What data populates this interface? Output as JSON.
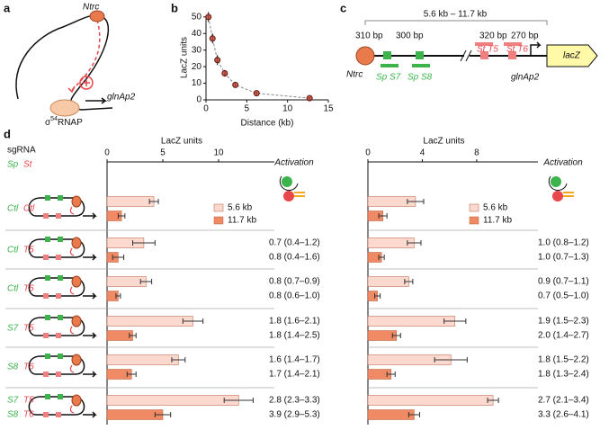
{
  "panel_labels": [
    "a",
    "b",
    "c",
    "d"
  ],
  "diagram_a": {
    "ntrc": "Ntrc",
    "promoter": "glnAp2",
    "sigma": "σ",
    "sigma_sup": "54",
    "rnap": "RNAP"
  },
  "diagram_c": {
    "span": "5.6 kb – 11.7 kb",
    "spacings": [
      "310 bp",
      "300 bp",
      "320 bp",
      "270 bp"
    ],
    "st_sites": [
      "St T5",
      "St T6"
    ],
    "ntrc": "Ntrc",
    "sp_sites": [
      "Sp S7",
      "Sp S8"
    ],
    "promoter": "glnAp2",
    "gene": "lacZ"
  },
  "panel_d": {
    "sgrna": "sgRNA",
    "sp": "Sp",
    "st": "St",
    "rows": [
      {
        "sp": [
          "Ctl"
        ],
        "st": [
          "Ctl"
        ]
      },
      {
        "sp": [
          "Ctl"
        ],
        "st": [
          "T5"
        ]
      },
      {
        "sp": [
          "Ctl"
        ],
        "st": [
          "T6"
        ]
      },
      {
        "sp": [
          "S7"
        ],
        "st": [
          "T5"
        ]
      },
      {
        "sp": [
          "S8"
        ],
        "st": [
          "T6"
        ]
      },
      {
        "sp": [
          "S7",
          "S8"
        ],
        "st": [
          "T5",
          "T6"
        ]
      }
    ]
  },
  "chart_data": [
    {
      "type": "scatter",
      "xlabel": "Distance (kb)",
      "ylabel": "LacZ units",
      "x": [
        0.3,
        0.8,
        1.4,
        2.3,
        3.6,
        6.2,
        12.7
      ],
      "values": [
        50,
        37,
        24,
        16,
        9,
        4,
        1
      ],
      "errors": [
        3,
        3,
        3,
        2,
        1,
        1,
        1
      ],
      "color": "#c0392b",
      "fit_line": "dashed",
      "xlim": [
        0,
        15
      ],
      "xticks": [
        0,
        5,
        10,
        15
      ],
      "ylim": [
        0,
        51
      ],
      "yticks": [
        0,
        10,
        20,
        30,
        40,
        50
      ]
    },
    {
      "type": "hbar",
      "xlabel": "LacZ units",
      "activation_title": "Activation",
      "xlim": [
        0,
        15
      ],
      "xticks": [
        0,
        5,
        10
      ],
      "series": [
        {
          "name": "5.6 kb",
          "color": "#fbd9cf",
          "values": [
            4.2,
            3.3,
            3.5,
            7.7,
            6.4,
            11.8
          ],
          "errors": [
            0.4,
            1.0,
            0.5,
            0.9,
            0.6,
            1.3
          ]
        },
        {
          "name": "11.7 kb",
          "color": "#f08a64",
          "values": [
            1.3,
            1.0,
            1.0,
            2.3,
            2.2,
            5.0
          ],
          "errors": [
            0.3,
            0.5,
            0.2,
            0.3,
            0.4,
            0.7
          ]
        }
      ],
      "activation": [
        [
          "0.7 (0.4–1.2)",
          "0.8 (0.4–1.6)"
        ],
        [
          "0.8 (0.7–0.9)",
          "0.8 (0.6–1.0)"
        ],
        [
          "1.8 (1.6–2.1)",
          "1.8 (1.4–2.5)"
        ],
        [
          "1.6 (1.4–1.7)",
          "1.7 (1.4–2.1)"
        ],
        [
          "2.8 (2.3–3.3)",
          "3.9 (2.9–5.3)"
        ]
      ]
    },
    {
      "type": "hbar",
      "xlabel": "LacZ units",
      "activation_title": "Activation",
      "xlim": [
        0,
        12.5
      ],
      "xticks": [
        0,
        4,
        8
      ],
      "series": [
        {
          "name": "5.6 kb",
          "color": "#fbd9cf",
          "values": [
            3.5,
            3.4,
            3.0,
            6.4,
            6.1,
            9.2
          ],
          "errors": [
            0.6,
            0.5,
            0.3,
            0.8,
            1.2,
            0.4
          ]
        },
        {
          "name": "11.7 kb",
          "color": "#f08a64",
          "values": [
            1.1,
            1.0,
            0.7,
            2.1,
            1.7,
            3.4
          ],
          "errors": [
            0.3,
            0.2,
            0.2,
            0.3,
            0.3,
            0.4
          ]
        }
      ],
      "activation": [
        [
          "1.0 (0.8–1.2)",
          "1.0 (0.7–1.3)"
        ],
        [
          "0.9 (0.7–1.1)",
          "0.7 (0.5–1.0)"
        ],
        [
          "1.9 (1.5–2.3)",
          "2.0 (1.4–2.7)"
        ],
        [
          "1.8 (1.5–2.2)",
          "1.8 (1.3–2.4)"
        ],
        [
          "2.7 (2.1–3.4)",
          "3.3 (2.6–4.1)"
        ]
      ]
    }
  ]
}
